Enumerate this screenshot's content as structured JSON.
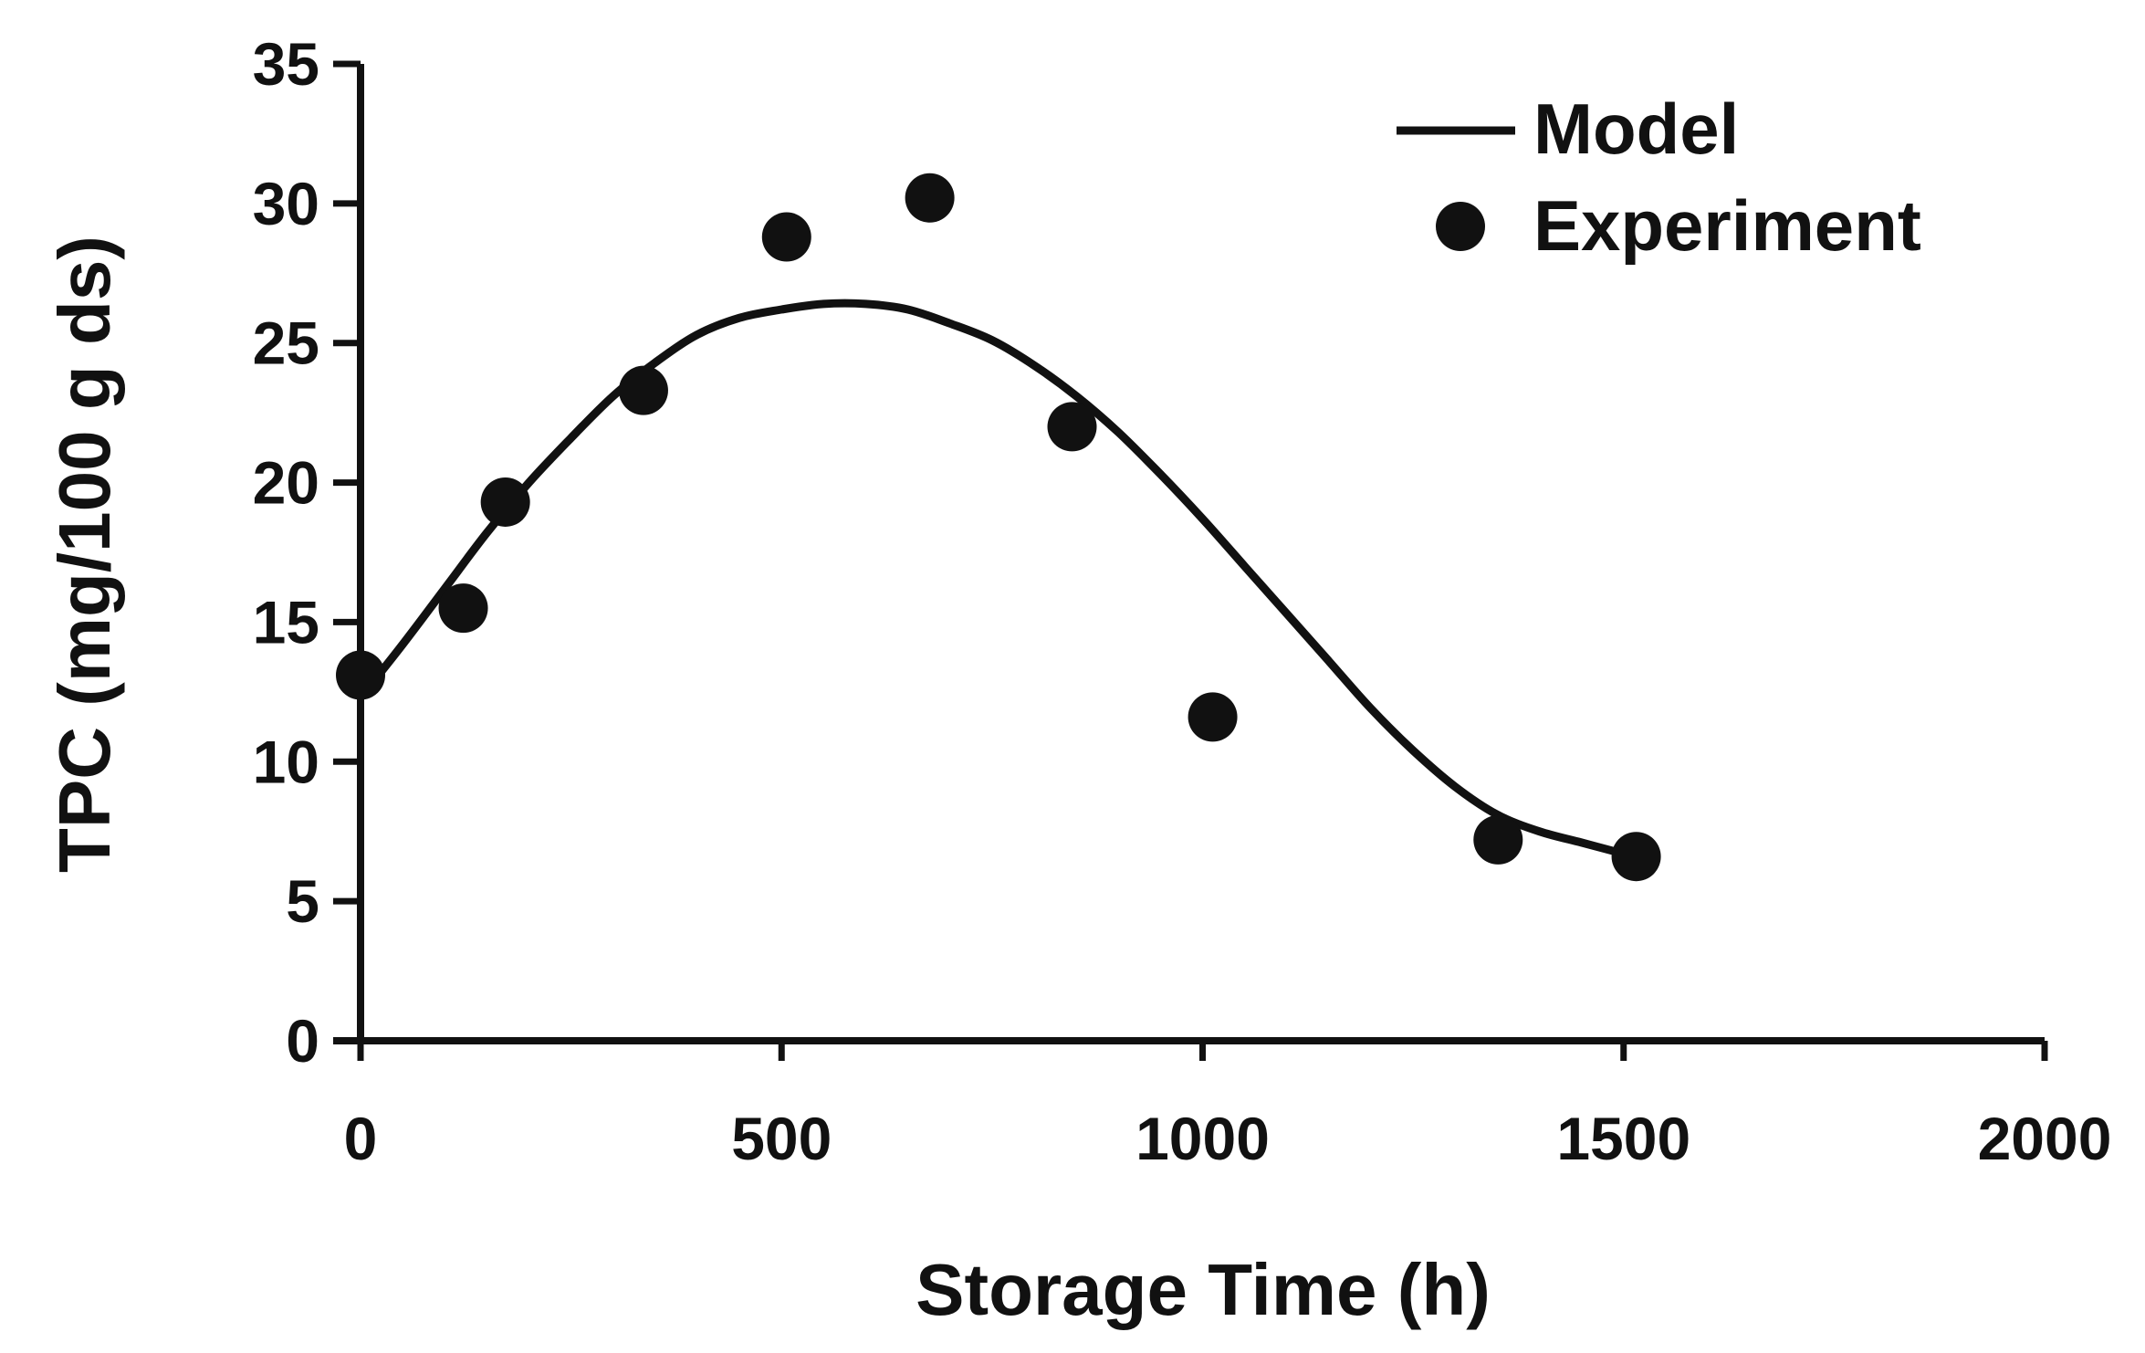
{
  "chart_data": {
    "type": "scatter",
    "title": "",
    "xlabel": "Storage Time (h)",
    "ylabel": "TPC (mg/100 g ds)",
    "xlim": [
      0,
      2000
    ],
    "ylim": [
      0,
      35
    ],
    "x_ticks": [
      0,
      500,
      1000,
      1500,
      2000
    ],
    "y_ticks": [
      0,
      5,
      10,
      15,
      20,
      25,
      30,
      35
    ],
    "x_tick_labels": [
      "0",
      "500",
      "1000",
      "1500",
      "2000"
    ],
    "y_tick_labels": [
      "0",
      "5",
      "10",
      "15",
      "20",
      "25",
      "30",
      "35"
    ],
    "grid": false,
    "legend_position": "top-right",
    "series": [
      {
        "name": "Model",
        "kind": "line",
        "color": "#111111",
        "x": [
          0,
          50,
          100,
          150,
          200,
          250,
          300,
          350,
          400,
          450,
          500,
          550,
          600,
          650,
          700,
          750,
          800,
          850,
          900,
          950,
          1000,
          1050,
          1100,
          1150,
          1200,
          1250,
          1300,
          1350,
          1400,
          1450,
          1500,
          1515
        ],
        "y": [
          12.3,
          14.2,
          16.2,
          18.2,
          20.0,
          21.6,
          23.1,
          24.3,
          25.3,
          25.9,
          26.2,
          26.4,
          26.4,
          26.2,
          25.7,
          25.1,
          24.2,
          23.1,
          21.8,
          20.3,
          18.7,
          17.0,
          15.3,
          13.6,
          11.9,
          10.4,
          9.1,
          8.1,
          7.5,
          7.1,
          6.7,
          6.6
        ]
      },
      {
        "name": "Experiment",
        "kind": "points",
        "color": "#111111",
        "x": [
          0,
          122,
          172,
          336,
          506,
          676,
          845,
          1012,
          1351,
          1515
        ],
        "y": [
          13.1,
          15.5,
          19.3,
          23.3,
          28.8,
          30.2,
          22.0,
          11.6,
          7.2,
          6.6
        ]
      }
    ]
  }
}
